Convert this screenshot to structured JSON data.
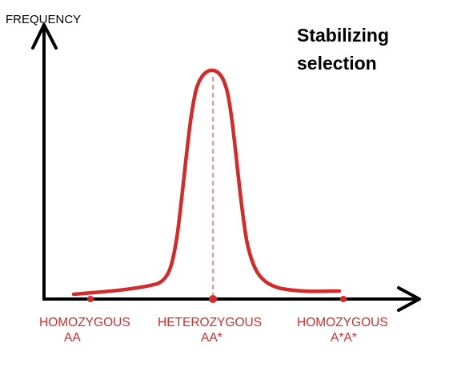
{
  "title_lines": [
    "Stabilizing",
    "selection"
  ],
  "y_axis_label": "FREQUENCY",
  "categories": [
    {
      "line1": "HOMOZYGOUS",
      "line2": "AA"
    },
    {
      "line1": "HETEROZYGOUS",
      "line2": "AA*"
    },
    {
      "line1": "HOMOZYGOUS",
      "line2": "A*A*"
    }
  ],
  "colors": {
    "axis": "#000000",
    "curve": "#d42a2a",
    "labels": "#c83232",
    "text": "#000000"
  }
}
